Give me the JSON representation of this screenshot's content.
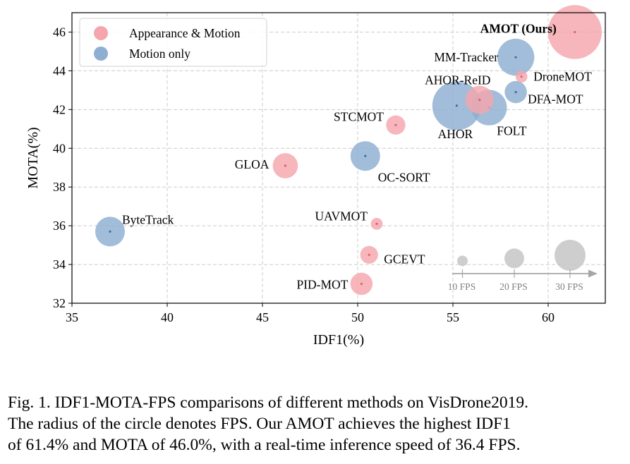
{
  "chart_data": {
    "type": "scatter",
    "xlabel": "IDF1(%)",
    "ylabel": "MOTA(%)",
    "xlim": [
      35,
      63
    ],
    "ylim": [
      32,
      47
    ],
    "x_ticks": [
      35,
      40,
      45,
      50,
      55,
      60
    ],
    "y_ticks": [
      32,
      34,
      36,
      38,
      40,
      42,
      44,
      46
    ],
    "grid": true,
    "legend": {
      "position": "top-left",
      "entries": [
        {
          "label": "Appearance & Motion",
          "category": "am",
          "color": "#f4a6ac"
        },
        {
          "label": "Motion only",
          "category": "mo",
          "color": "#8eaed2"
        }
      ]
    },
    "size_note": "bubble radius denotes FPS",
    "points": [
      {
        "name": "AMOT (Ours)",
        "idf1": 61.4,
        "mota": 46.0,
        "fps": 36.4,
        "category": "am",
        "bold": true
      },
      {
        "name": "MM-Tracker",
        "idf1": 58.3,
        "mota": 44.7,
        "fps": 25,
        "category": "mo"
      },
      {
        "name": "DroneMOT",
        "idf1": 58.6,
        "mota": 43.7,
        "fps": 8,
        "category": "am"
      },
      {
        "name": "DFA-MOT",
        "idf1": 58.3,
        "mota": 42.9,
        "fps": 15,
        "category": "mo"
      },
      {
        "name": "AHOR-ReID",
        "idf1": 56.4,
        "mota": 42.5,
        "fps": 19,
        "category": "am"
      },
      {
        "name": "FOLT",
        "idf1": 56.9,
        "mota": 42.1,
        "fps": 24,
        "category": "mo"
      },
      {
        "name": "AHOR",
        "idf1": 55.2,
        "mota": 42.2,
        "fps": 33,
        "category": "mo"
      },
      {
        "name": "STCMOT",
        "idf1": 52.0,
        "mota": 41.2,
        "fps": 13,
        "category": "am"
      },
      {
        "name": "OC-SORT",
        "idf1": 50.4,
        "mota": 39.6,
        "fps": 20,
        "category": "mo"
      },
      {
        "name": "GLOA",
        "idf1": 46.2,
        "mota": 39.1,
        "fps": 17,
        "category": "am"
      },
      {
        "name": "ByteTrack",
        "idf1": 37.0,
        "mota": 35.7,
        "fps": 20,
        "category": "mo"
      },
      {
        "name": "UAVMOT",
        "idf1": 51.0,
        "mota": 36.1,
        "fps": 8,
        "category": "am"
      },
      {
        "name": "GCEVT",
        "idf1": 50.6,
        "mota": 34.5,
        "fps": 12,
        "category": "am"
      },
      {
        "name": "PID-MOT",
        "idf1": 50.2,
        "mota": 33.0,
        "fps": 15,
        "category": "am"
      }
    ],
    "fps_reference": [
      {
        "label": "10 FPS",
        "fps": 10
      },
      {
        "label": "20 FPS",
        "fps": 20
      },
      {
        "label": "30 FPS",
        "fps": 30
      }
    ],
    "colors": {
      "am_fill": "#f4a6ac",
      "am_center": "#e06070",
      "mo_fill": "#8eaed2",
      "mo_center": "#3d6ea8",
      "ref_fill": "#c9c9c9",
      "ref_axis": "#a6a6a6",
      "grid": "#cccccc"
    }
  },
  "caption": {
    "line1": "Fig. 1.  IDF1-MOTA-FPS comparisons of different methods on VisDrone2019.",
    "line2": "The radius of the circle denotes FPS. Our AMOT achieves the highest IDF1",
    "line3": "of 61.4% and MOTA of 46.0%, with a real-time inference speed of 36.4 FPS."
  }
}
